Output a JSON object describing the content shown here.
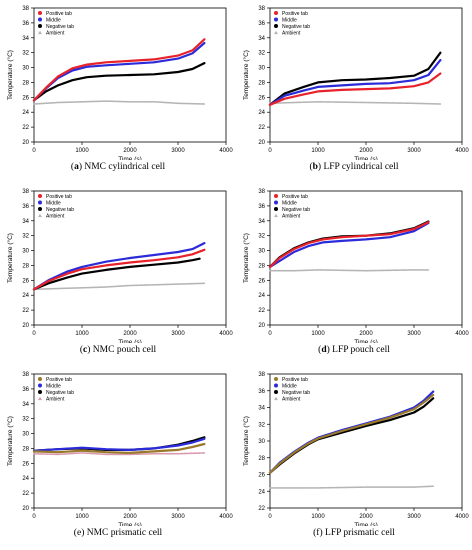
{
  "chart_data": [
    {
      "id": "a",
      "type": "line",
      "caption_letter": "a",
      "caption_text": "NMC cylindrical cell",
      "caption_letter_bold": true,
      "xlabel": "Time (s)",
      "ylabel": "Temperature (°C)",
      "xlim": [
        0,
        4000
      ],
      "ylim": [
        20,
        38
      ],
      "xticks": [
        0,
        1000,
        2000,
        3000,
        4000
      ],
      "yticks": [
        20,
        22,
        24,
        26,
        28,
        30,
        32,
        34,
        36,
        38
      ],
      "grid": false,
      "legend_position": "top-left",
      "series": [
        {
          "name": "Positive tab",
          "color": "#e8222b",
          "marker": "dot",
          "x": [
            0,
            250,
            500,
            800,
            1100,
            1500,
            2000,
            2500,
            3000,
            3300,
            3550
          ],
          "y": [
            25.6,
            27.3,
            28.8,
            29.9,
            30.4,
            30.7,
            30.9,
            31.1,
            31.6,
            32.3,
            33.8
          ]
        },
        {
          "name": "Middle",
          "color": "#2b2bd9",
          "marker": "dot",
          "x": [
            0,
            250,
            500,
            800,
            1100,
            1500,
            2000,
            2500,
            3000,
            3300,
            3550
          ],
          "y": [
            25.6,
            27.2,
            28.6,
            29.6,
            30.1,
            30.3,
            30.5,
            30.7,
            31.2,
            31.9,
            33.3
          ]
        },
        {
          "name": "Negative tab",
          "color": "#000000",
          "marker": "dot",
          "x": [
            0,
            250,
            500,
            800,
            1100,
            1500,
            2000,
            2500,
            3000,
            3300,
            3550
          ],
          "y": [
            25.6,
            26.8,
            27.6,
            28.3,
            28.7,
            28.9,
            29.0,
            29.1,
            29.4,
            29.8,
            30.6
          ]
        },
        {
          "name": "Ambient",
          "color": "#b5b5b5",
          "marker": "triangle",
          "x": [
            0,
            500,
            1000,
            1500,
            2000,
            2500,
            3000,
            3550
          ],
          "y": [
            25.1,
            25.3,
            25.4,
            25.5,
            25.4,
            25.4,
            25.2,
            25.1
          ]
        }
      ]
    },
    {
      "id": "b",
      "type": "line",
      "caption_letter": "b",
      "caption_text": "LFP cylindrical cell",
      "caption_letter_bold": true,
      "xlabel": "Time (s)",
      "ylabel": "Temperature (°C)",
      "xlim": [
        0,
        4000
      ],
      "ylim": [
        20,
        38
      ],
      "xticks": [
        0,
        1000,
        2000,
        3000,
        4000
      ],
      "yticks": [
        20,
        22,
        24,
        26,
        28,
        30,
        32,
        34,
        36,
        38
      ],
      "grid": false,
      "legend_position": "top-left",
      "series": [
        {
          "name": "Positive tab",
          "color": "#e8222b",
          "marker": "dot",
          "x": [
            0,
            300,
            700,
            1000,
            1500,
            2000,
            2500,
            3000,
            3300,
            3550
          ],
          "y": [
            25.0,
            25.8,
            26.4,
            26.8,
            27.0,
            27.1,
            27.2,
            27.5,
            28.0,
            29.2
          ]
        },
        {
          "name": "Middle",
          "color": "#2b2bd9",
          "marker": "dot",
          "x": [
            0,
            300,
            700,
            1000,
            1500,
            2000,
            2500,
            3000,
            3300,
            3550
          ],
          "y": [
            25.0,
            26.2,
            26.9,
            27.4,
            27.6,
            27.8,
            27.9,
            28.3,
            29.0,
            31.0
          ]
        },
        {
          "name": "Negative tab",
          "color": "#000000",
          "marker": "dot",
          "x": [
            0,
            300,
            700,
            1000,
            1500,
            2000,
            2500,
            3000,
            3300,
            3550
          ],
          "y": [
            25.0,
            26.5,
            27.4,
            28.0,
            28.3,
            28.4,
            28.6,
            28.9,
            29.8,
            32.0
          ]
        },
        {
          "name": "Ambient",
          "color": "#b5b5b5",
          "marker": "triangle",
          "x": [
            0,
            500,
            1000,
            2000,
            3000,
            3550
          ],
          "y": [
            25.2,
            25.3,
            25.4,
            25.3,
            25.2,
            25.1
          ]
        }
      ]
    },
    {
      "id": "c",
      "type": "line",
      "caption_letter": "c",
      "caption_text": "NMC pouch cell",
      "caption_letter_bold": true,
      "xlabel": "Time (s)",
      "ylabel": "Temperature (°C)",
      "xlim": [
        0,
        4000
      ],
      "ylim": [
        20,
        38
      ],
      "xticks": [
        0,
        1000,
        2000,
        3000,
        4000
      ],
      "yticks": [
        20,
        22,
        24,
        26,
        28,
        30,
        32,
        34,
        36,
        38
      ],
      "grid": false,
      "legend_position": "top-left",
      "series": [
        {
          "name": "Positive tab",
          "color": "#e8222b",
          "marker": "dot",
          "x": [
            0,
            300,
            700,
            1000,
            1500,
            2000,
            2500,
            3000,
            3300,
            3550
          ],
          "y": [
            24.8,
            25.9,
            26.9,
            27.5,
            28.0,
            28.4,
            28.7,
            29.1,
            29.5,
            30.1
          ]
        },
        {
          "name": "Middle",
          "color": "#2b2bd9",
          "marker": "dot",
          "x": [
            0,
            300,
            700,
            1000,
            1500,
            2000,
            2500,
            3000,
            3300,
            3550
          ],
          "y": [
            24.8,
            26.0,
            27.2,
            27.8,
            28.5,
            29.0,
            29.4,
            29.8,
            30.2,
            31.0
          ]
        },
        {
          "name": "Negative tab",
          "color": "#000000",
          "marker": "dot",
          "x": [
            0,
            300,
            700,
            1000,
            1500,
            2000,
            2500,
            3000,
            3300,
            3450
          ],
          "y": [
            24.8,
            25.6,
            26.4,
            26.9,
            27.4,
            27.8,
            28.1,
            28.4,
            28.7,
            28.9
          ]
        },
        {
          "name": "Ambient",
          "color": "#b5b5b5",
          "marker": "triangle",
          "x": [
            0,
            500,
            1000,
            1500,
            2000,
            2500,
            3000,
            3550
          ],
          "y": [
            24.8,
            24.9,
            25.0,
            25.1,
            25.3,
            25.4,
            25.5,
            25.6
          ]
        }
      ]
    },
    {
      "id": "d",
      "type": "line",
      "caption_letter": "d",
      "caption_text": "LFP pouch cell",
      "caption_letter_bold": true,
      "xlabel": "Time (s)",
      "ylabel": "Temperature (°C)",
      "xlim": [
        0,
        4000
      ],
      "ylim": [
        20,
        38
      ],
      "xticks": [
        0,
        1000,
        2000,
        3000,
        4000
      ],
      "yticks": [
        20,
        22,
        24,
        26,
        28,
        30,
        32,
        34,
        36,
        38
      ],
      "grid": false,
      "legend_position": "top-left",
      "series": [
        {
          "name": "Positive tab",
          "color": "#e8222b",
          "marker": "dot",
          "x": [
            0,
            200,
            500,
            800,
            1100,
            1500,
            2000,
            2500,
            3000,
            3300
          ],
          "y": [
            27.8,
            29.0,
            30.2,
            31.0,
            31.5,
            31.8,
            32.0,
            32.2,
            32.9,
            33.8
          ]
        },
        {
          "name": "Middle",
          "color": "#2b2bd9",
          "marker": "dot",
          "x": [
            0,
            200,
            500,
            800,
            1100,
            1500,
            2000,
            2500,
            3000,
            3300
          ],
          "y": [
            27.8,
            28.6,
            29.8,
            30.6,
            31.1,
            31.3,
            31.5,
            31.8,
            32.6,
            33.7
          ]
        },
        {
          "name": "Negative tab",
          "color": "#000000",
          "marker": "dot",
          "x": [
            0,
            200,
            500,
            800,
            1100,
            1500,
            2000,
            2500,
            3000,
            3300
          ],
          "y": [
            27.8,
            29.1,
            30.3,
            31.1,
            31.6,
            31.9,
            32.0,
            32.3,
            33.0,
            33.9
          ]
        },
        {
          "name": "Ambient",
          "color": "#b5b5b5",
          "marker": "triangle",
          "x": [
            0,
            500,
            1000,
            2000,
            3000,
            3300
          ],
          "y": [
            27.3,
            27.3,
            27.4,
            27.3,
            27.4,
            27.4
          ]
        }
      ]
    },
    {
      "id": "e",
      "type": "line",
      "caption_letter": "e",
      "caption_text": "NMC prismatic cell",
      "caption_letter_bold": false,
      "xlabel": "Time (s)",
      "ylabel": "Temperature (°C)",
      "xlim": [
        0,
        4000
      ],
      "ylim": [
        20,
        38
      ],
      "xticks": [
        0,
        1000,
        2000,
        3000,
        4000
      ],
      "yticks": [
        20,
        22,
        24,
        26,
        28,
        30,
        32,
        34,
        36,
        38
      ],
      "grid": false,
      "legend_position": "top-left",
      "series": [
        {
          "name": "Positive tab",
          "color": "#9a7a2a",
          "marker": "dot",
          "x": [
            0,
            500,
            1000,
            1500,
            2000,
            2500,
            3000,
            3300,
            3550
          ],
          "y": [
            27.6,
            27.5,
            27.7,
            27.5,
            27.4,
            27.6,
            27.8,
            28.2,
            28.6
          ]
        },
        {
          "name": "Middle",
          "color": "#2b2bd9",
          "marker": "dot",
          "x": [
            0,
            500,
            1000,
            1500,
            2000,
            2500,
            3000,
            3300,
            3550
          ],
          "y": [
            27.7,
            27.9,
            28.1,
            27.9,
            27.8,
            28.0,
            28.4,
            28.8,
            29.3
          ]
        },
        {
          "name": "Negative tab",
          "color": "#000000",
          "marker": "dot",
          "x": [
            0,
            500,
            1000,
            1500,
            2000,
            2500,
            3000,
            3300,
            3550
          ],
          "y": [
            27.7,
            27.9,
            28.0,
            27.8,
            27.8,
            28.0,
            28.5,
            29.0,
            29.5
          ]
        },
        {
          "name": "Ambient",
          "color": "#d99ab0",
          "marker": "triangle",
          "x": [
            0,
            500,
            1000,
            1500,
            2000,
            2500,
            3000,
            3550
          ],
          "y": [
            27.3,
            27.2,
            27.4,
            27.2,
            27.2,
            27.3,
            27.3,
            27.4
          ]
        }
      ]
    },
    {
      "id": "f",
      "type": "line",
      "caption_letter": "f",
      "caption_text": "LFP prismatic cell",
      "caption_letter_bold": false,
      "xlabel": "Time (s)",
      "ylabel": "Temperature (°C)",
      "xlim": [
        0,
        4000
      ],
      "ylim": [
        22,
        38
      ],
      "xticks": [
        0,
        1000,
        2000,
        3000,
        4000
      ],
      "yticks": [
        22,
        24,
        26,
        28,
        30,
        32,
        34,
        36,
        38
      ],
      "grid": false,
      "legend_position": "top-left",
      "series": [
        {
          "name": "Positive tab",
          "color": "#9a7a2a",
          "marker": "dot",
          "x": [
            0,
            200,
            500,
            800,
            1000,
            1500,
            2000,
            2500,
            3000,
            3200,
            3400
          ],
          "y": [
            26.2,
            27.3,
            28.6,
            29.7,
            30.3,
            31.2,
            32.0,
            32.8,
            33.8,
            34.6,
            35.5
          ]
        },
        {
          "name": "Middle",
          "color": "#2b2bd9",
          "marker": "dot",
          "x": [
            0,
            200,
            500,
            800,
            1000,
            1500,
            2000,
            2500,
            3000,
            3200,
            3400
          ],
          "y": [
            26.2,
            27.4,
            28.7,
            29.8,
            30.4,
            31.3,
            32.1,
            32.9,
            34.0,
            34.8,
            35.9
          ]
        },
        {
          "name": "Negative tab",
          "color": "#000000",
          "marker": "dot",
          "x": [
            0,
            200,
            500,
            800,
            1000,
            1500,
            2000,
            2500,
            3000,
            3200,
            3400
          ],
          "y": [
            26.2,
            27.2,
            28.5,
            29.6,
            30.2,
            31.0,
            31.8,
            32.5,
            33.4,
            34.1,
            35.1
          ]
        },
        {
          "name": "Ambient",
          "color": "#b5b5b5",
          "marker": "triangle",
          "x": [
            0,
            1000,
            2000,
            3000,
            3400
          ],
          "y": [
            24.4,
            24.4,
            24.5,
            24.5,
            24.6
          ]
        }
      ]
    }
  ]
}
